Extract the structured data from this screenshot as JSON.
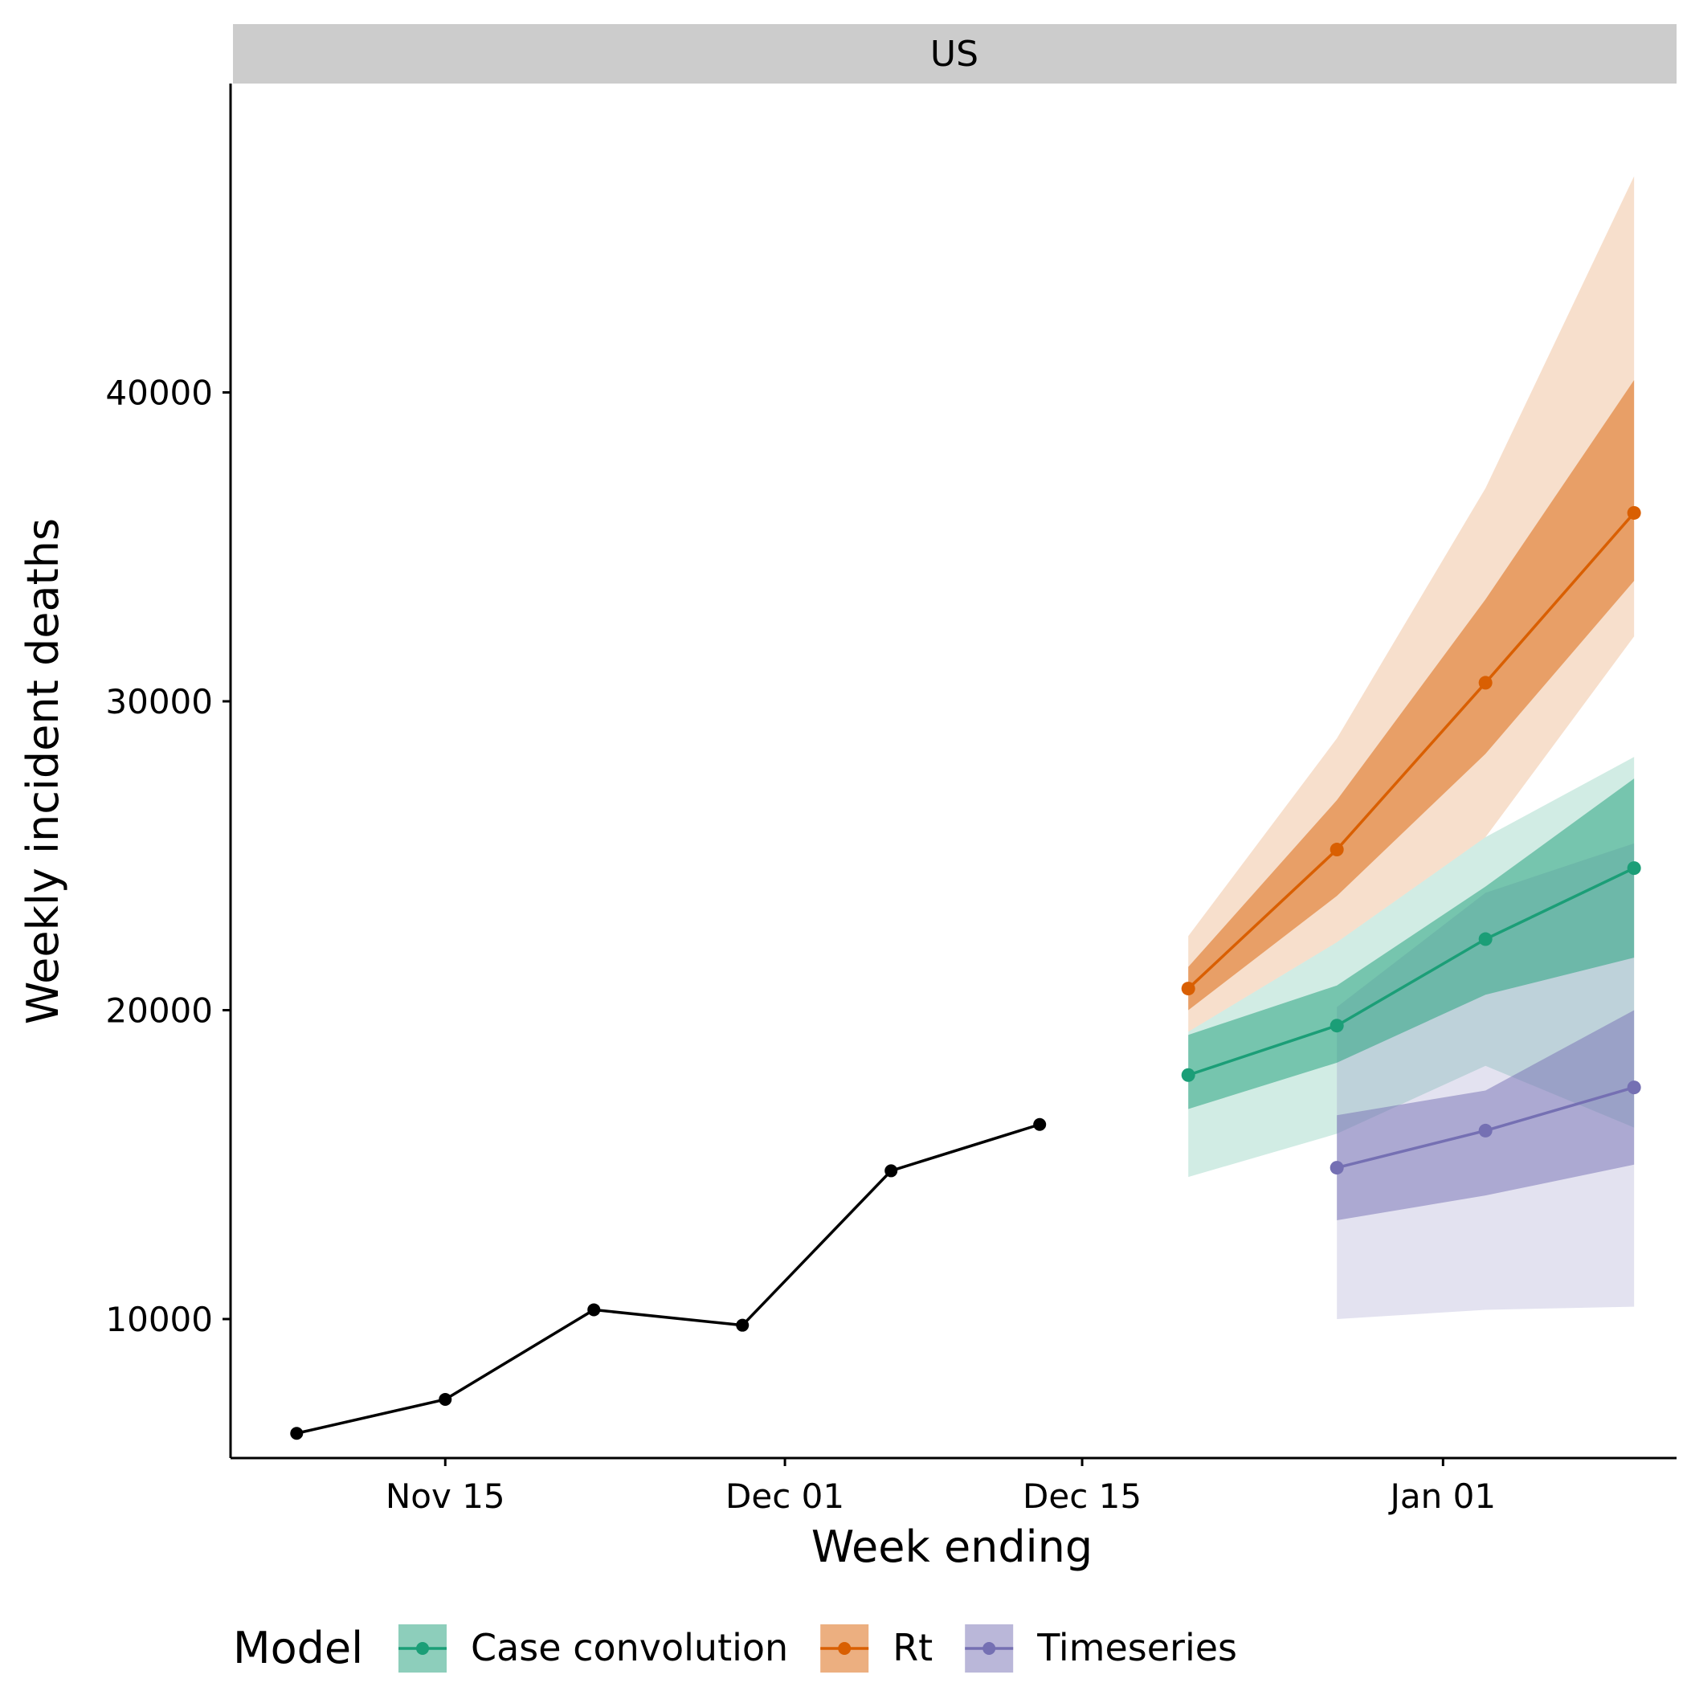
{
  "chart_data": {
    "type": "line",
    "facet_label": "US",
    "xlabel": "Week ending",
    "ylabel": "Weekly incident deaths",
    "x_ticks": [
      {
        "date": "2020-11-14",
        "label": "Nov 15"
      },
      {
        "date": "2020-11-30",
        "label": "Dec 01"
      },
      {
        "date": "2020-12-14",
        "label": "Dec 15"
      },
      {
        "date": "2020-12-31",
        "label": "Jan 01"
      }
    ],
    "y_ticks": [
      10000,
      20000,
      30000,
      40000
    ],
    "xlim": [
      "2020-11-04",
      "2021-01-11"
    ],
    "ylim": [
      5500,
      50000
    ],
    "grid": false,
    "legend": {
      "title": "Model",
      "position": "bottom",
      "entries": [
        {
          "label": "Case convolution",
          "color": "#1B9E77"
        },
        {
          "label": "Rt",
          "color": "#D95F02"
        },
        {
          "label": "Timeseries",
          "color": "#7570B3"
        }
      ]
    },
    "observed": {
      "color": "#000000",
      "points": [
        {
          "x": "2020-11-07",
          "y": 6300
        },
        {
          "x": "2020-11-14",
          "y": 7400
        },
        {
          "x": "2020-11-21",
          "y": 10300
        },
        {
          "x": "2020-11-28",
          "y": 9800
        },
        {
          "x": "2020-12-05",
          "y": 14800
        },
        {
          "x": "2020-12-12",
          "y": 16300
        }
      ]
    },
    "series": [
      {
        "name": "Case convolution",
        "color": "#1B9E77",
        "x": [
          "2020-12-19",
          "2020-12-26",
          "2021-01-02",
          "2021-01-09"
        ],
        "median": [
          17900,
          19500,
          22300,
          24600
        ],
        "inner": [
          [
            16800,
            19200
          ],
          [
            18300,
            20800
          ],
          [
            20500,
            24000
          ],
          [
            21700,
            27500
          ]
        ],
        "outer": [
          [
            14600,
            19300
          ],
          [
            16000,
            22200
          ],
          [
            18200,
            25600
          ],
          [
            16200,
            28200
          ]
        ]
      },
      {
        "name": "Rt",
        "color": "#D95F02",
        "x": [
          "2020-12-19",
          "2020-12-26",
          "2021-01-02",
          "2021-01-09"
        ],
        "median": [
          20700,
          25200,
          30600,
          36100
        ],
        "inner": [
          [
            20000,
            21400
          ],
          [
            23700,
            26800
          ],
          [
            28300,
            33300
          ],
          [
            33900,
            40400
          ]
        ],
        "outer": [
          [
            19300,
            22400
          ],
          [
            22200,
            28800
          ],
          [
            25600,
            36900
          ],
          [
            32100,
            47000
          ]
        ]
      },
      {
        "name": "Timeseries",
        "color": "#7570B3",
        "x": [
          "2020-12-26",
          "2021-01-02",
          "2021-01-09"
        ],
        "median": [
          14900,
          16100,
          17500
        ],
        "inner": [
          [
            13200,
            16600
          ],
          [
            14000,
            17400
          ],
          [
            15000,
            20000
          ]
        ],
        "outer": [
          [
            10000,
            20100
          ],
          [
            10300,
            23800
          ],
          [
            10400,
            25400
          ]
        ]
      }
    ]
  }
}
